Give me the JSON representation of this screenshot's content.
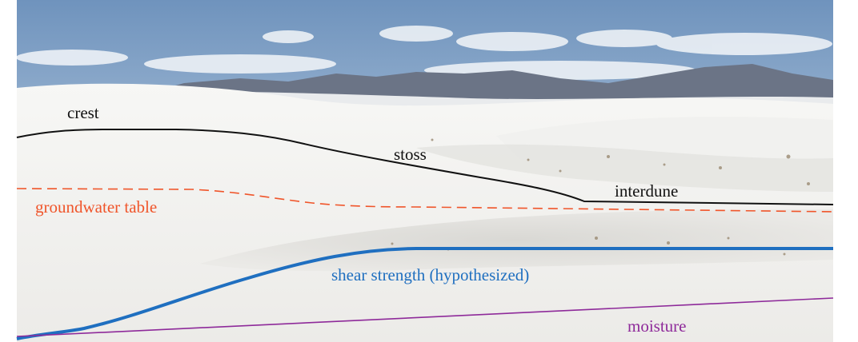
{
  "labels": {
    "crest": "crest",
    "stoss": "stoss",
    "interdune": "interdune",
    "groundwater_table": "groundwater table",
    "shear_strength": "shear strength (hypothesized)",
    "moisture": "moisture"
  },
  "colors": {
    "dune_profile": "#111111",
    "groundwater_table": "#f0552a",
    "shear_strength": "#1f6fc0",
    "moisture": "#8e2a9a",
    "sky_top": "#6f93bd",
    "sand": "#f4f4f2"
  }
}
